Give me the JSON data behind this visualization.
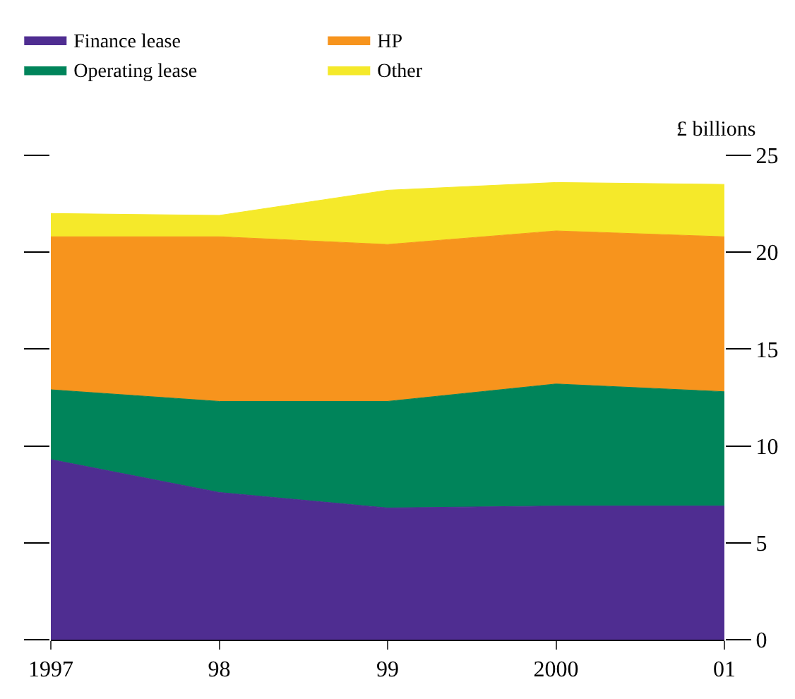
{
  "chart_data": {
    "type": "area",
    "stacked": true,
    "ylabel": "£ billions",
    "x": [
      1997,
      1998,
      1999,
      2000,
      2001
    ],
    "xlim": [
      1997,
      2001
    ],
    "xticks": [
      {
        "value": 1997,
        "label": "1997"
      },
      {
        "value": 1998,
        "label": "98"
      },
      {
        "value": 1999,
        "label": "99"
      },
      {
        "value": 2000,
        "label": "2000"
      },
      {
        "value": 2001,
        "label": "01"
      }
    ],
    "ylim": [
      0,
      25
    ],
    "yticks": [
      0,
      5,
      10,
      15,
      20,
      25
    ],
    "legend": "top left",
    "series": [
      {
        "name": "Finance lease",
        "color": "#4f2d91",
        "values": [
          9.3,
          7.6,
          6.8,
          6.9,
          6.9
        ]
      },
      {
        "name": "Operating lease",
        "color": "#00845a",
        "values": [
          3.6,
          4.7,
          5.5,
          6.3,
          5.9
        ]
      },
      {
        "name": "HP",
        "color": "#f7941d",
        "values": [
          7.9,
          8.5,
          8.1,
          7.9,
          8.0
        ]
      },
      {
        "name": "Other",
        "color": "#f5e92a",
        "values": [
          1.2,
          1.1,
          2.8,
          2.5,
          2.7
        ]
      }
    ]
  }
}
